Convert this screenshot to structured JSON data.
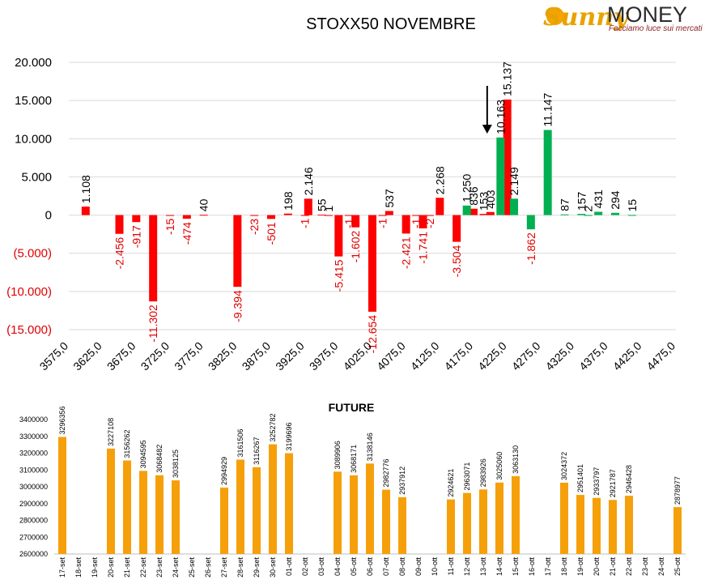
{
  "brand": {
    "name_script": "Sunny",
    "name_main": "MONEY",
    "tagline": "Facciamo luce sui mercati",
    "colors": {
      "sun": "#f3a400",
      "script": "#e8a200",
      "money": "#2b2b2b",
      "tagline": "#8a1f1f"
    }
  },
  "colors": {
    "positive": "#00b050",
    "negative": "#ff0000",
    "future_bar": "#f5a00a",
    "neg_text": "#e00000",
    "grid": "#d9d9d9",
    "arrow": "#000000"
  },
  "chart_data": [
    {
      "type": "bar",
      "title": "STOXX50 NOVEMBRE",
      "ylim": [
        -15000,
        20000
      ],
      "y_ticks": [
        20000,
        15000,
        10000,
        5000,
        0,
        -5000,
        -10000,
        -15000
      ],
      "y_tick_labels": [
        "20.000",
        "15.000",
        "10.000",
        "5.000",
        "0",
        "(5.000)",
        "(10.000)",
        "(15.000)"
      ],
      "x_min": 3575,
      "x_max": 4475,
      "x_step": 25,
      "x_tick_labels": [
        "3575,0",
        "3625,0",
        "3675,0",
        "3725,0",
        "3775,0",
        "3825,0",
        "3875,0",
        "3925,0",
        "3975,0",
        "4025,0",
        "4075,0",
        "4125,0",
        "4175,0",
        "4225,0",
        "4275,0",
        "4325,0",
        "4375,0",
        "4425,0",
        "4475,0"
      ],
      "grid": true,
      "annotation": {
        "type": "arrow",
        "pointing_at_strike": 4200,
        "direction": "down"
      },
      "series": [
        {
          "color": "#ff0000",
          "points": [
            {
              "strike": 3600,
              "value": 1108,
              "label": "1.108"
            },
            {
              "strike": 3650,
              "value": -2456,
              "label": "-2.456"
            },
            {
              "strike": 3675,
              "value": -917,
              "label": "-917"
            },
            {
              "strike": 3700,
              "value": -11302,
              "label": "-11.302"
            },
            {
              "strike": 3725,
              "value": -15,
              "label": "-15"
            },
            {
              "strike": 3750,
              "value": -474,
              "label": "-474"
            },
            {
              "strike": 3775,
              "value": 40,
              "label": "40"
            },
            {
              "strike": 3825,
              "value": -9394,
              "label": "-9.394"
            },
            {
              "strike": 3850,
              "value": -23,
              "label": "-23"
            },
            {
              "strike": 3875,
              "value": -501,
              "label": "-501"
            },
            {
              "strike": 3900,
              "value": 198,
              "label": "198"
            },
            {
              "strike": 3925,
              "value": -1,
              "label": "-1"
            },
            {
              "strike": 3930,
              "value": 2146,
              "label": "2.146"
            },
            {
              "strike": 3950,
              "value": 55,
              "label": "55"
            },
            {
              "strike": 3960,
              "value": 1,
              "label": "1"
            },
            {
              "strike": 3975,
              "value": -5415,
              "label": "-5.415"
            },
            {
              "strike": 3990,
              "value": -1,
              "label": "-1"
            },
            {
              "strike": 4000,
              "value": -1602,
              "label": "-1.602"
            },
            {
              "strike": 4025,
              "value": -12654,
              "label": "-12.654"
            },
            {
              "strike": 4040,
              "value": -1,
              "label": "-1"
            },
            {
              "strike": 4050,
              "value": 537,
              "label": "537"
            },
            {
              "strike": 4075,
              "value": -2421,
              "label": "-2.421"
            },
            {
              "strike": 4090,
              "value": -1,
              "label": "-1"
            },
            {
              "strike": 4100,
              "value": -1741,
              "label": "-1.741"
            },
            {
              "strike": 4110,
              "value": -2,
              "label": "-2"
            },
            {
              "strike": 4125,
              "value": 2268,
              "label": "2.268"
            },
            {
              "strike": 4150,
              "value": -3504,
              "label": "-3.504"
            },
            {
              "strike": 4175,
              "value": 836,
              "label": "836"
            },
            {
              "strike": 4190,
              "value": 153,
              "label": "153"
            },
            {
              "strike": 4200,
              "value": 403,
              "label": "403"
            },
            {
              "strike": 4225,
              "value": 15137,
              "label": "15.137"
            }
          ]
        },
        {
          "color": "#00b050",
          "points": [
            {
              "strike": 4165,
              "value": 1250,
              "label": "1.250"
            },
            {
              "strike": 4215,
              "value": 10163,
              "label": "10.163"
            },
            {
              "strike": 4235,
              "value": 2149,
              "label": "2.149"
            },
            {
              "strike": 4260,
              "value": -1862,
              "label": "-1.862"
            },
            {
              "strike": 4285,
              "value": 11147,
              "label": "11.147"
            },
            {
              "strike": 4310,
              "value": 87,
              "label": "87"
            },
            {
              "strike": 4335,
              "value": 157,
              "label": "157"
            },
            {
              "strike": 4345,
              "value": 2,
              "label": "2"
            },
            {
              "strike": 4360,
              "value": 431,
              "label": "431"
            },
            {
              "strike": 4385,
              "value": 294,
              "label": "294"
            },
            {
              "strike": 4410,
              "value": 15,
              "label": "15"
            }
          ]
        }
      ]
    },
    {
      "type": "bar",
      "title": "FUTURE",
      "ylim": [
        2600000,
        3400000
      ],
      "y_ticks": [
        3400000,
        3300000,
        3200000,
        3100000,
        3000000,
        2900000,
        2800000,
        2700000,
        2600000
      ],
      "y_tick_labels": [
        "3400000",
        "3300000",
        "3200000",
        "3100000",
        "3000000",
        "2900000",
        "2800000",
        "2700000",
        "2600000"
      ],
      "color": "#f5a00a",
      "categories": [
        "17-set",
        "18-set",
        "19-set",
        "20-set",
        "21-set",
        "22-set",
        "23-set",
        "24-set",
        "25-set",
        "26-set",
        "27-set",
        "28-set",
        "29-set",
        "30-set",
        "01-ott",
        "02-ott",
        "03-ott",
        "04-ott",
        "05-ott",
        "06-ott",
        "07-ott",
        "08-ott",
        "09-ott",
        "10-ott",
        "11-ott",
        "12-ott",
        "13-ott",
        "14-ott",
        "15-ott",
        "16-ott",
        "17-ott",
        "18-ott",
        "19-ott",
        "20-ott",
        "21-ott",
        "22-ott",
        "23-ott",
        "24-ott",
        "25-ott"
      ],
      "values": [
        3296356,
        null,
        null,
        3227108,
        3156262,
        3094595,
        3068482,
        3038125,
        null,
        null,
        2994929,
        3161506,
        3116267,
        3252782,
        3199696,
        null,
        null,
        3089906,
        3068171,
        3138146,
        2982776,
        2937912,
        null,
        null,
        2924621,
        2963071,
        2983926,
        3025060,
        3063130,
        null,
        null,
        3024372,
        2951401,
        2933797,
        2921787,
        2946428,
        null,
        null,
        2878977
      ]
    }
  ]
}
